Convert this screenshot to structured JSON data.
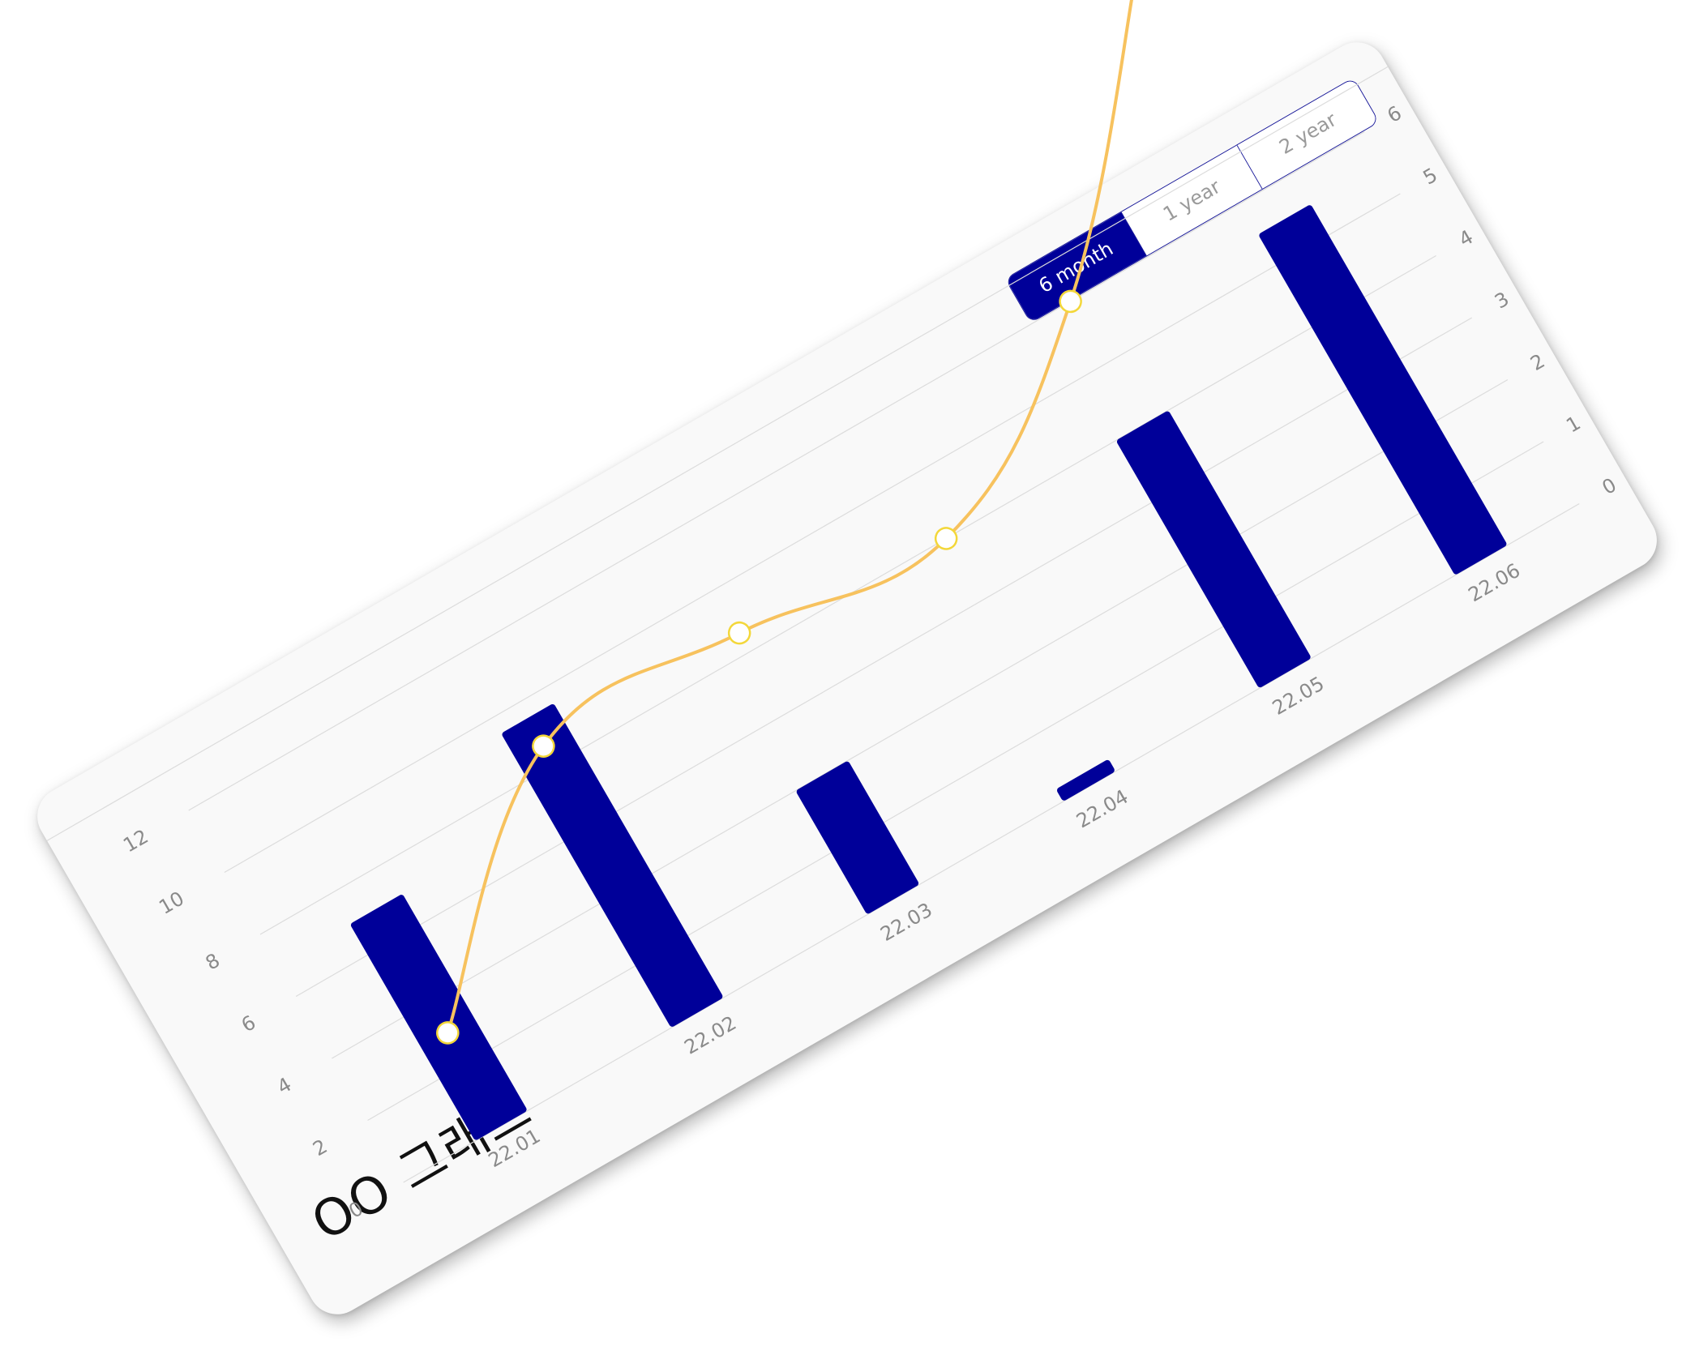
{
  "title": "OO 그래프",
  "range_options": [
    "6 month",
    "1 year",
    "2 year"
  ],
  "range_selected": "6 month",
  "colors": {
    "bar": "#000099",
    "line": "#f7c25e",
    "marker_fill": "#ffffff",
    "marker_stroke": "#f3d73a",
    "grid": "#dcdcdc",
    "card": "#f9f9f9"
  },
  "chart_data": {
    "type": "bar",
    "categories": [
      "22.01",
      "22.02",
      "22.03",
      "22.04",
      "22.05",
      "22.06"
    ],
    "series": [
      {
        "type": "bar",
        "axis": "left",
        "values": [
          7,
          9.5,
          4,
          0.4,
          8,
          11
        ]
      },
      {
        "type": "line",
        "axis": "right",
        "smooth": true,
        "values": [
          1.5,
          4.3,
          4.3,
          4.0,
          6.0,
          9.6
        ]
      }
    ],
    "y_left": {
      "ticks": [
        0,
        2,
        4,
        6,
        8,
        10,
        12
      ],
      "range": [
        0,
        12
      ]
    },
    "y_right": {
      "ticks": [
        0,
        1,
        2,
        3,
        4,
        5,
        6
      ],
      "range": [
        0,
        6
      ]
    },
    "grid": true,
    "legend": "none"
  }
}
